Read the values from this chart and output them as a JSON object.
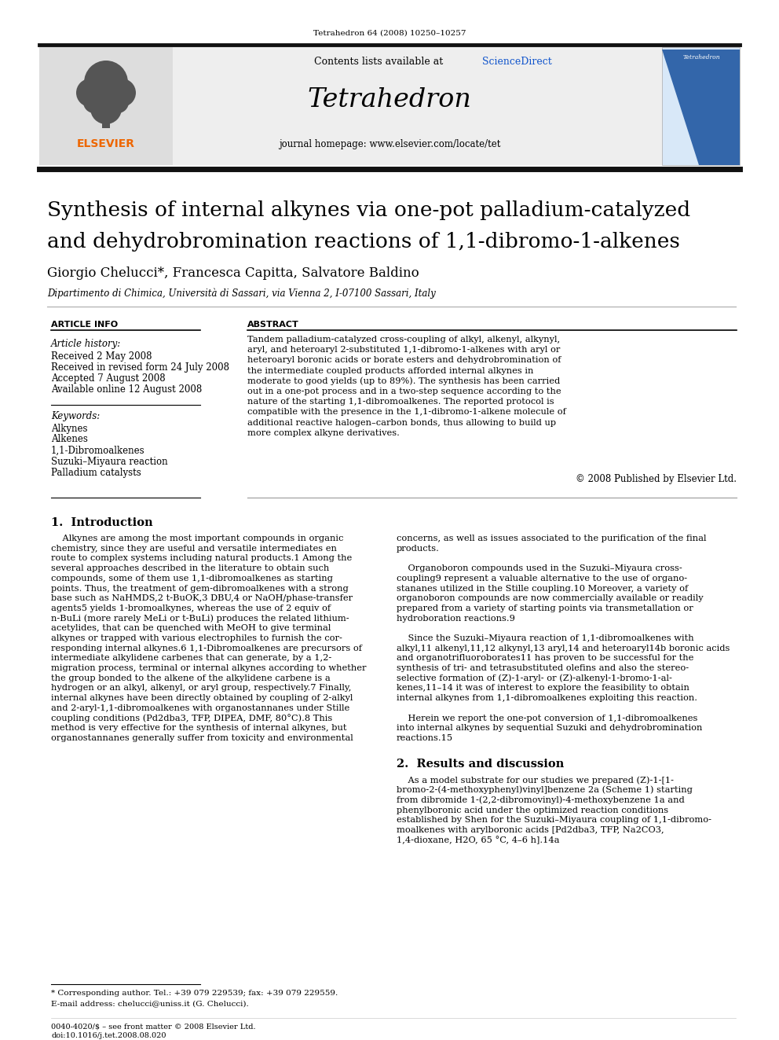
{
  "page_header_text": "Tetrahedron 64 (2008) 10250–10257",
  "journal_name": "Tetrahedron",
  "contents_text": "Contents lists available at ScienceDirect",
  "sciencedirect_text": "ScienceDirect",
  "journal_url": "journal homepage: www.elsevier.com/locate/tet",
  "title_line1": "Synthesis of internal alkynes via one-pot palladium-catalyzed",
  "title_line2": "and dehydrobromination reactions of 1,1-dibromo-1-alkenes",
  "authors": "Giorgio Chelucci*, Francesca Capitta, Salvatore Baldino",
  "affiliation": "Dipartimento di Chimica, Università di Sassari, via Vienna 2, I-07100 Sassari, Italy",
  "article_info_header": "ARTICLE INFO",
  "abstract_header": "ABSTRACT",
  "article_history_label": "Article history:",
  "received": "Received 2 May 2008",
  "received_revised": "Received in revised form 24 July 2008",
  "accepted": "Accepted 7 August 2008",
  "available_online": "Available online 12 August 2008",
  "keywords_label": "Keywords:",
  "keywords": [
    "Alkynes",
    "Alkenes",
    "1,1-Dibromoalkenes",
    "Suzuki–Miyaura reaction",
    "Palladium catalysts"
  ],
  "abstract_text": "Tandem palladium-catalyzed cross-coupling of alkyl, alkenyl, alkynyl, aryl, and heteroaryl 2-substituted 1,1-dibromo-1-alkenes with aryl or heteroaryl boronic acids or borate esters and dehydrobromination of the intermediate coupled products afforded internal alkynes in moderate to good yields (up to 89%). The synthesis has been carried out in a one-pot process and in a two-step sequence according to the nature of the starting 1,1-dibromoalkenes. The reported protocol is compatible with the presence in the 1,1-dibromo-1-alkene molecule of additional reactive halogen–carbon bonds, thus allowing to build up more complex alkyne derivatives.",
  "copyright": "© 2008 Published by Elsevier Ltd.",
  "section1_title": "1.  Introduction",
  "section2_title": "2.  Results and discussion",
  "intro_col1": [
    "    Alkynes are among the most important compounds in organic",
    "chemistry, since they are useful and versatile intermediates en",
    "route to complex systems including natural products.1 Among the",
    "several approaches described in the literature to obtain such",
    "compounds, some of them use 1,1-dibromoalkenes as starting",
    "points. Thus, the treatment of gem-dibromoalkenes with a strong",
    "base such as NaHMDS,2 t-BuOK,3 DBU,4 or NaOH/phase-transfer",
    "agents5 yields 1-bromoalkynes, whereas the use of 2 equiv of",
    "n-BuLi (more rarely MeLi or t-BuLi) produces the related lithium-",
    "acetylides, that can be quenched with MeOH to give terminal",
    "alkynes or trapped with various electrophiles to furnish the cor-",
    "responding internal alkynes.6 1,1-Dibromoalkenes are precursors of",
    "intermediate alkylidene carbenes that can generate, by a 1,2-",
    "migration process, terminal or internal alkynes according to whether",
    "the group bonded to the alkene of the alkylidene carbene is a",
    "hydrogen or an alkyl, alkenyl, or aryl group, respectively.7 Finally,",
    "internal alkynes have been directly obtained by coupling of 2-alkyl",
    "and 2-aryl-1,1-dibromoalkenes with organostannanes under Stille",
    "coupling conditions (Pd2dba3, TFP, DIPEA, DMF, 80°C).8 This",
    "method is very effective for the synthesis of internal alkynes, but",
    "organostannanes generally suffer from toxicity and environmental"
  ],
  "intro_col2": [
    "concerns, as well as issues associated to the purification of the final",
    "products.",
    "",
    "    Organoboron compounds used in the Suzuki–Miyaura cross-",
    "coupling9 represent a valuable alternative to the use of organo-",
    "stananes utilized in the Stille coupling.10 Moreover, a variety of",
    "organoboron compounds are now commercially available or readily",
    "prepared from a variety of starting points via transmetallation or",
    "hydroboration reactions.9",
    "",
    "    Since the Suzuki–Miyaura reaction of 1,1-dibromoalkenes with",
    "alkyl,11 alkenyl,11,12 alkynyl,13 aryl,14 and heteroaryl14b boronic acids",
    "and organotrifluoroborates11 has proven to be successful for the",
    "synthesis of tri- and tetrasubstituted olefins and also the stereo-",
    "selective formation of (Z)-1-aryl- or (Z)-alkenyl-1-bromo-1-al-",
    "kenes,11–14 it was of interest to explore the feasibility to obtain",
    "internal alkynes from 1,1-dibromoalkenes exploiting this reaction.",
    "",
    "    Herein we report the one-pot conversion of 1,1-dibromoalkenes",
    "into internal alkynes by sequential Suzuki and dehydrobromination",
    "reactions.15"
  ],
  "results_col2": [
    "    As a model substrate for our studies we prepared (Z)-1-[1-",
    "bromo-2-(4-methoxyphenyl)vinyl]benzene 2a (Scheme 1) starting",
    "from dibromide 1-(2,2-dibromovinyl)-4-methoxybenzene 1a and",
    "phenylboronic acid under the optimized reaction conditions",
    "established by Shen for the Suzuki–Miyaura coupling of 1,1-dibromo-",
    "moalkenes with arylboronic acids [Pd2dba3, TFP, Na2CO3,",
    "1,4-dioxane, H2O, 65 °C, 4–6 h].14a"
  ],
  "footnote_asterisk": "* Corresponding author. Tel.: +39 079 229539; fax: +39 079 229559.",
  "footnote_email": "E-mail address: chelucci@uniss.it (G. Chelucci).",
  "footer_issn": "0040-4020/$ – see front matter © 2008 Elsevier Ltd.",
  "footer_doi": "doi:10.1016/j.tet.2008.08.020",
  "bg_color": "#ffffff",
  "header_bg": "#eeeeee",
  "text_color": "#000000",
  "link_color": "#1155cc",
  "orange_color": "#ee6600",
  "thick_bar_color": "#111111"
}
